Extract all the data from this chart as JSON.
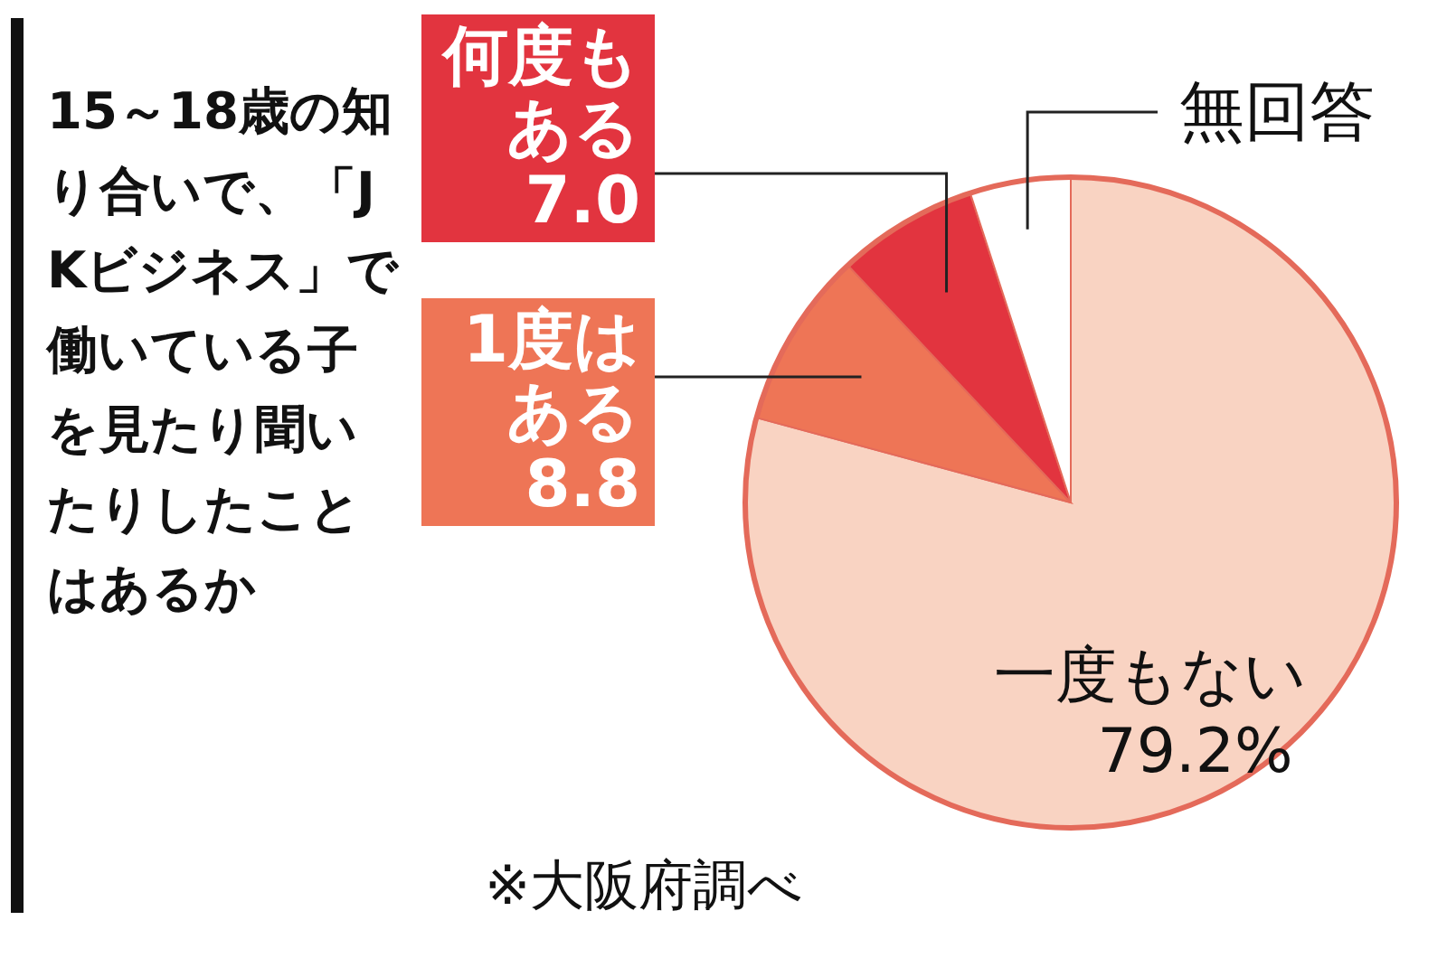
{
  "chart_data": {
    "type": "pie",
    "title": "15～18歳の知り合いで、「JKビジネス」で働いている子を見たり聞いたりしたことはあるか",
    "categories": [
      "一度もない",
      "1度はある",
      "何度もある",
      "無回答"
    ],
    "values": [
      79.2,
      8.8,
      7.0,
      5.0
    ],
    "colors": [
      "#f9d3c2",
      "#ee7556",
      "#e2343f",
      "#ffffff"
    ],
    "value_labels": [
      "79.2%",
      "8.8",
      "7.0",
      null
    ],
    "annotations": [
      "※大阪府調べ"
    ]
  }
}
